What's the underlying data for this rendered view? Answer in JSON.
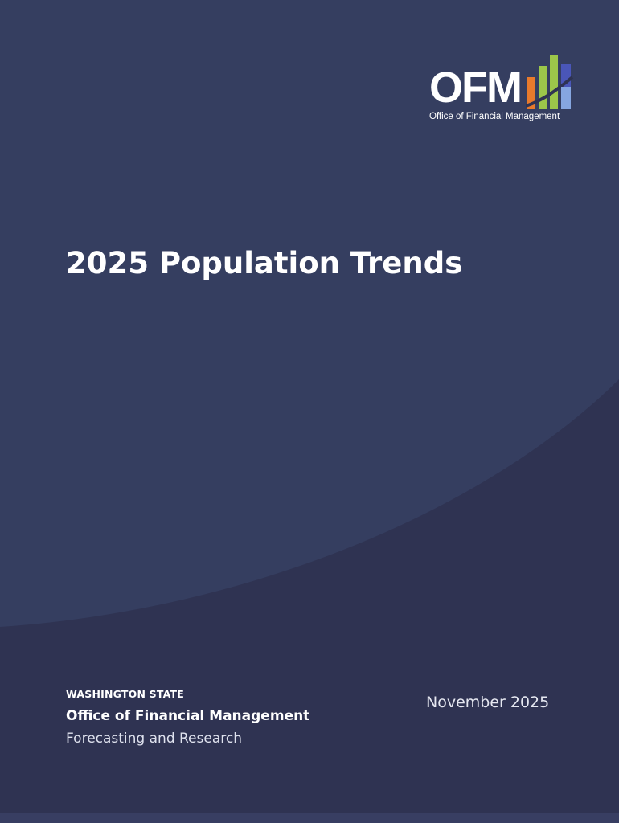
{
  "cover": {
    "title": "2025 Population Trends",
    "date": "November 2025"
  },
  "logo": {
    "wordmark": "OFM",
    "subtitle": "Office of Financial Management",
    "icon": "bar-chart-growth-icon",
    "bar_colors": [
      "#e87a2c",
      "#9cc64a",
      "#4a56b8",
      "#86a6e0"
    ]
  },
  "footer": {
    "state": "WASHINGTON STATE",
    "agency": "Office of Financial Management",
    "division": "Forecasting and Research"
  },
  "colors": {
    "background_upper": "#353e60",
    "background_lower": "#2f3352",
    "text": "#ffffff"
  }
}
